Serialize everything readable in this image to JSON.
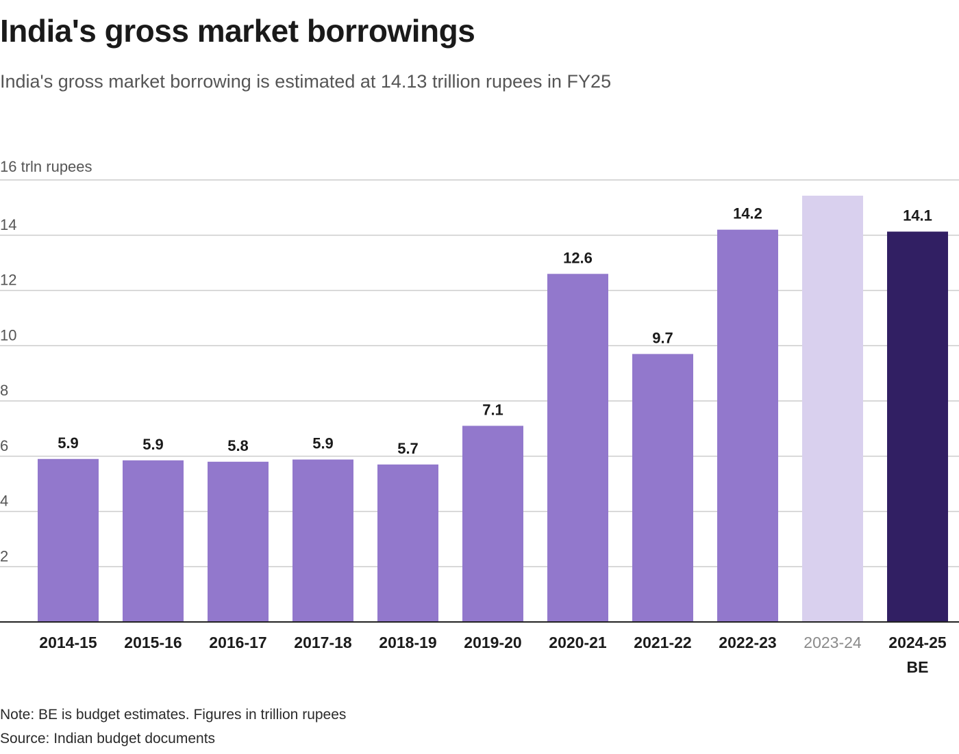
{
  "chart_data": {
    "type": "bar",
    "title": "India's gross market borrowings",
    "subtitle": "India's gross market borrowing is estimated at 14.13 trillion rupees in FY25",
    "ylabel": "16 trln rupees",
    "xlabel": "",
    "ylim": [
      0,
      16
    ],
    "yticks": [
      2,
      4,
      6,
      8,
      10,
      12,
      14
    ],
    "grid": true,
    "categories": [
      "2014-15",
      "2015-16",
      "2016-17",
      "2017-18",
      "2018-19",
      "2019-20",
      "2020-21",
      "2021-22",
      "2022-23",
      "2023-24",
      "2024-25 BE"
    ],
    "category_lines": [
      [
        "2014-15"
      ],
      [
        "2015-16"
      ],
      [
        "2016-17"
      ],
      [
        "2017-18"
      ],
      [
        "2018-19"
      ],
      [
        "2019-20"
      ],
      [
        "2020-21"
      ],
      [
        "2021-22"
      ],
      [
        "2022-23"
      ],
      [
        "2023-24"
      ],
      [
        "2024-25",
        "BE"
      ]
    ],
    "values": [
      5.9,
      5.85,
      5.8,
      5.88,
      5.7,
      7.1,
      12.6,
      9.7,
      14.2,
      15.43,
      14.13
    ],
    "data_labels": [
      "5.9",
      "5.9",
      "5.8",
      "5.9",
      "5.7",
      "7.1",
      "12.6",
      "9.7",
      "14.2",
      "",
      "14.1"
    ],
    "bar_colors": [
      "#9278cc",
      "#9278cc",
      "#9278cc",
      "#9278cc",
      "#9278cc",
      "#9278cc",
      "#9278cc",
      "#9278cc",
      "#9278cc",
      "#d9d0ee",
      "#311f63"
    ],
    "muted_categories": [
      "2023-24"
    ],
    "note": "Note: BE is budget estimates. Figures in trillion rupees",
    "source": "Source: Indian budget documents"
  },
  "colors": {
    "bar": "#9278cc",
    "bar_light": "#d9d0ee",
    "bar_dark": "#311f63",
    "grid": "#cccccc",
    "axis": "#222222"
  }
}
